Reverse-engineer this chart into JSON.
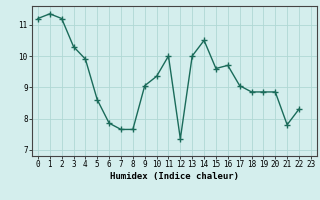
{
  "x": [
    0,
    1,
    2,
    3,
    4,
    5,
    6,
    7,
    8,
    9,
    10,
    11,
    12,
    13,
    14,
    15,
    16,
    17,
    18,
    19,
    20,
    21,
    22,
    23
  ],
  "y": [
    11.2,
    11.35,
    11.2,
    10.3,
    9.9,
    8.6,
    7.85,
    7.65,
    7.65,
    9.05,
    9.35,
    10.0,
    7.35,
    10.0,
    10.5,
    9.6,
    9.7,
    9.05,
    8.85,
    8.85,
    8.85,
    7.8,
    8.3,
    null
  ],
  "xlim": [
    -0.5,
    23.5
  ],
  "ylim": [
    6.8,
    11.6
  ],
  "yticks": [
    7,
    8,
    9,
    10,
    11
  ],
  "xticks": [
    0,
    1,
    2,
    3,
    4,
    5,
    6,
    7,
    8,
    9,
    10,
    11,
    12,
    13,
    14,
    15,
    16,
    17,
    18,
    19,
    20,
    21,
    22,
    23
  ],
  "xlabel": "Humidex (Indice chaleur)",
  "line_color": "#1a6b5a",
  "marker": "+",
  "marker_size": 4,
  "marker_lw": 1.0,
  "line_width": 1.0,
  "bg_color": "#d4eeed",
  "grid_color": "#b0d8d4",
  "tick_fontsize": 5.5,
  "label_fontsize": 6.5
}
